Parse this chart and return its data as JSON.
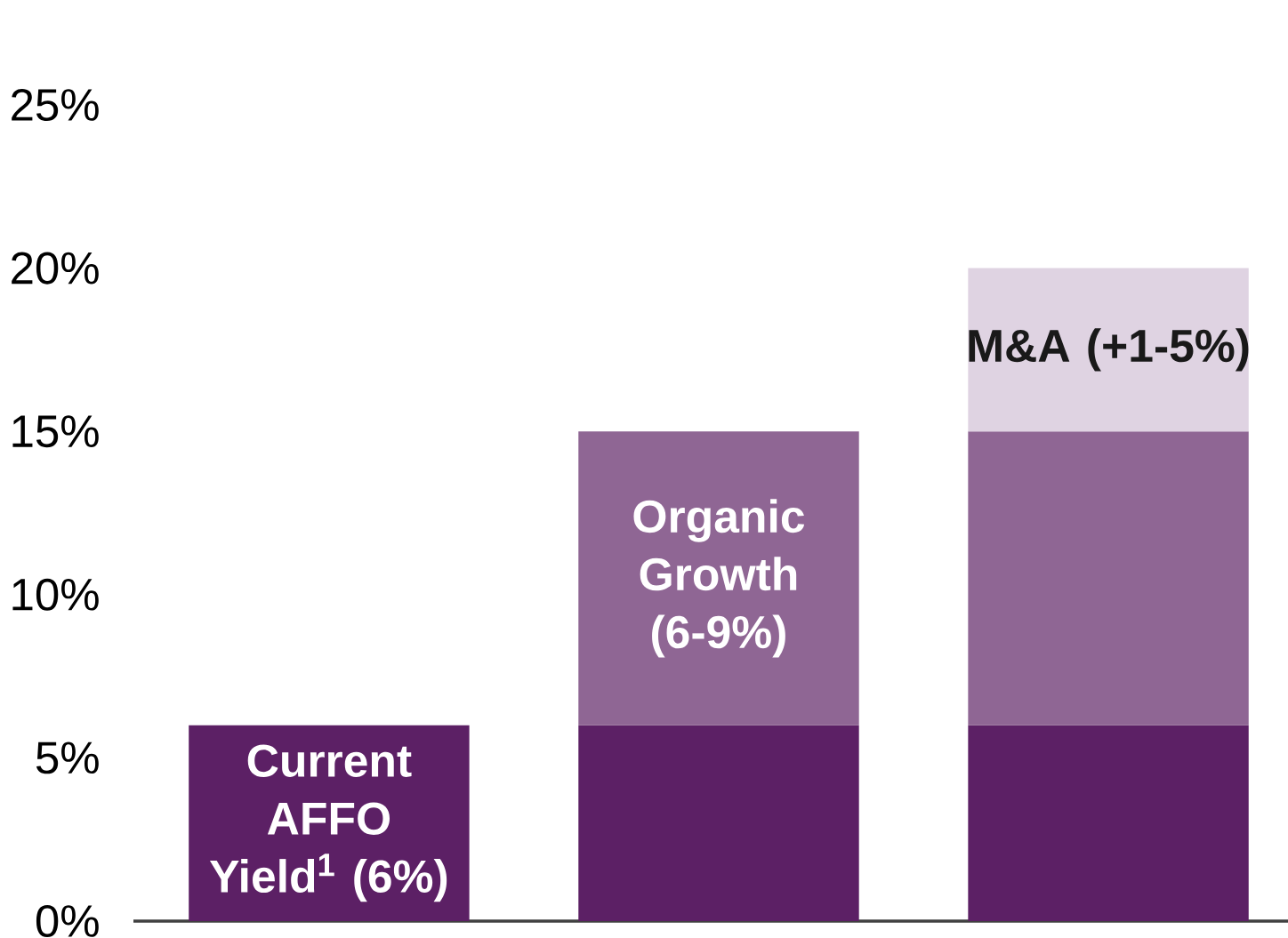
{
  "chart_data": {
    "type": "bar",
    "stacked": true,
    "categories": [
      null,
      null,
      null
    ],
    "series": [
      {
        "name": "Current AFFO Yield$^{1}$ (6%)",
        "color": "#5c2065",
        "values": [
          6,
          6,
          6
        ]
      },
      {
        "name": "Organic Growth (6-9%)",
        "color": "#8f6694",
        "values": [
          null,
          9,
          9
        ]
      },
      {
        "name": "M&A (+1-5%)",
        "color": "#dfd3e2",
        "values": [
          null,
          null,
          5
        ]
      }
    ],
    "ylim": [
      0,
      25
    ],
    "yticks": [
      {
        "value": 0,
        "label": "0%"
      },
      {
        "value": 5,
        "label": "5%"
      },
      {
        "value": 10,
        "label": "10%"
      },
      {
        "value": 15,
        "label": "15%"
      },
      {
        "value": 20,
        "label": "20%"
      },
      {
        "value": 25,
        "label": "25%"
      }
    ]
  }
}
